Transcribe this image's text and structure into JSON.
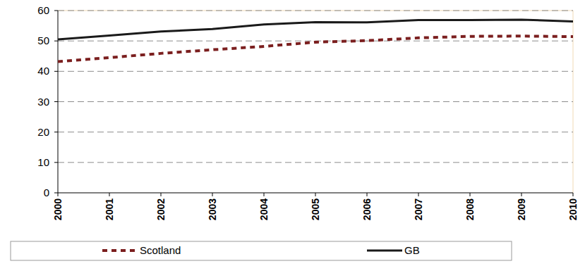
{
  "chart_data": {
    "type": "line",
    "categories": [
      "2000",
      "2001",
      "2002",
      "2003",
      "2004",
      "2005",
      "2006",
      "2007",
      "2008",
      "2009",
      "2010"
    ],
    "series": [
      {
        "name": "Scotland",
        "color": "#7b1f1f",
        "line_style": "dashed",
        "values": [
          43.2,
          44.5,
          45.9,
          47.1,
          48.2,
          49.6,
          50.1,
          51.0,
          51.5,
          51.6,
          51.4
        ]
      },
      {
        "name": "GB",
        "color": "#1a1a1a",
        "line_style": "solid",
        "values": [
          50.5,
          51.8,
          53.1,
          53.9,
          55.4,
          56.2,
          56.1,
          56.9,
          56.9,
          57.0,
          56.4
        ]
      }
    ],
    "ylim": [
      0,
      60
    ],
    "yticks": [
      0,
      10,
      20,
      30,
      40,
      50,
      60
    ],
    "grid": true,
    "legend": "bottom"
  }
}
